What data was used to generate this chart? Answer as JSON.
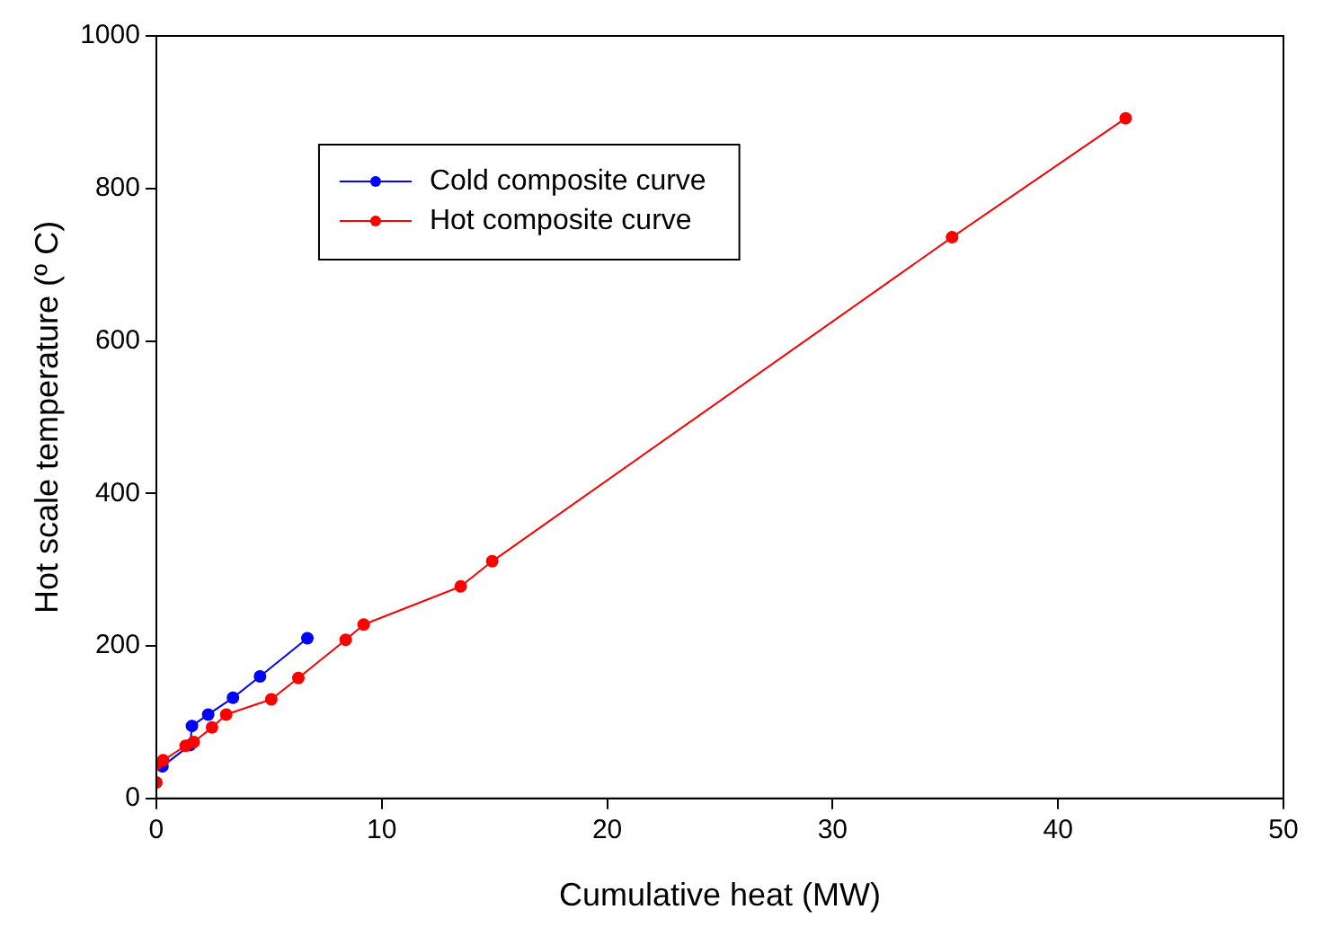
{
  "chart_data": {
    "type": "line",
    "xlabel": "Cumulative heat (MW)",
    "ylabel": "Hot scale temperature (º C)",
    "xlim": [
      0,
      50
    ],
    "xticks": [
      0,
      10,
      20,
      30,
      40,
      50
    ],
    "ylim": [
      0,
      1000
    ],
    "yticks": [
      0,
      200,
      400,
      600,
      800,
      1000
    ],
    "grid": false,
    "legend": "top left",
    "marker": "circle",
    "line_style": "solid",
    "series": [
      {
        "name": "Cold composite curve",
        "color": "#0000ff",
        "x": [
          0.27,
          1.5,
          1.58,
          2.3,
          3.4,
          4.6,
          6.7
        ],
        "values": [
          42,
          70,
          95,
          110,
          132,
          160,
          210
        ]
      },
      {
        "name": "Hot composite curve",
        "color": "#ff0000",
        "x": [
          0,
          0,
          0.3,
          1.3,
          1.66,
          2.47,
          3.1,
          5.1,
          6.3,
          8.4,
          9.2,
          13.5,
          14.9,
          35.3,
          43
        ],
        "values": [
          21,
          45,
          50,
          69,
          74,
          93,
          110,
          130,
          158,
          208,
          228,
          278,
          311,
          736,
          892
        ]
      }
    ]
  }
}
